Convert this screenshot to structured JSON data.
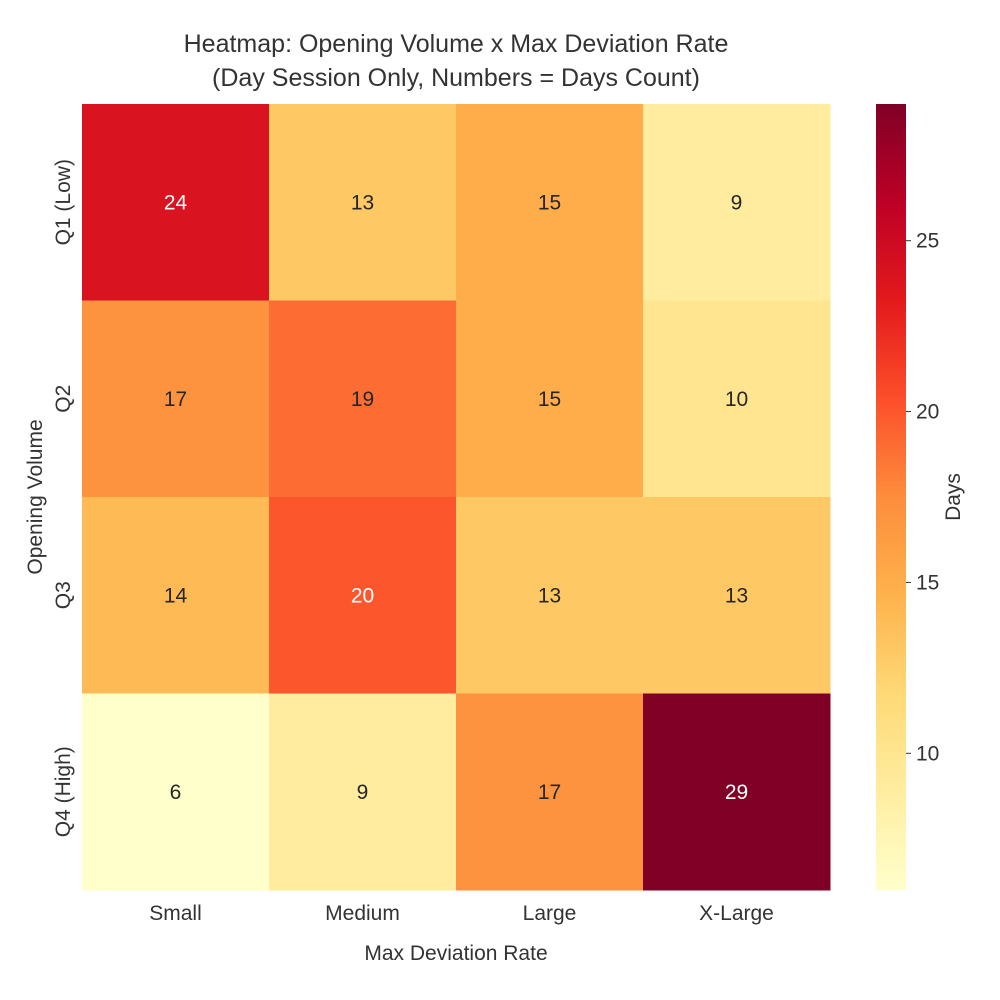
{
  "chart_data": {
    "type": "heatmap",
    "title": [
      "Heatmap: Opening Volume x Max Deviation Rate",
      "(Day Session Only, Numbers = Days Count)"
    ],
    "xlabel": "Max Deviation Rate",
    "ylabel": "Opening Volume",
    "x_categories": [
      "Small",
      "Medium",
      "Large",
      "X-Large"
    ],
    "y_categories": [
      "Q1 (Low)",
      "Q2",
      "Q3",
      "Q4 (High)"
    ],
    "values": [
      [
        24,
        13,
        15,
        9
      ],
      [
        17,
        19,
        15,
        10
      ],
      [
        14,
        20,
        13,
        13
      ],
      [
        6,
        9,
        17,
        29
      ]
    ],
    "colorscale": "YlOrRd",
    "colorbar": {
      "label": "Days",
      "range": [
        6,
        29
      ],
      "ticks": [
        10,
        15,
        20,
        25
      ]
    },
    "annotations": "cell counts shown",
    "grid": false
  }
}
